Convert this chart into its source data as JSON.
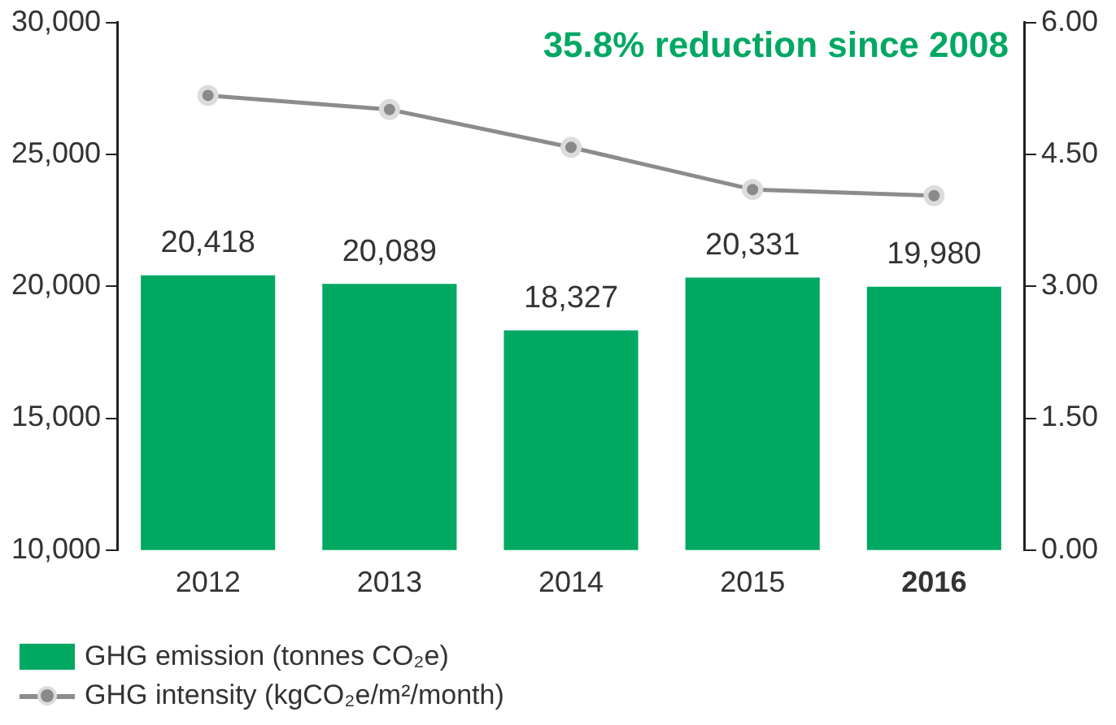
{
  "chart_data": {
    "type": "bar",
    "categories": [
      "2012",
      "2013",
      "2014",
      "2015",
      "2016"
    ],
    "series": [
      {
        "name": "GHG emission (tonnes CO₂e)",
        "color": "#00a862",
        "values": [
          20418,
          20089,
          18327,
          20331,
          19980
        ],
        "value_labels": [
          "20,418",
          "20,089",
          "18,327",
          "20,331",
          "19,980"
        ]
      },
      {
        "name": "GHG intensity (kgCO₂e/m²/month)",
        "type": "line",
        "axis": "y2",
        "color": "#8c8c8c",
        "values": [
          5.17,
          5.01,
          4.58,
          4.1,
          4.03
        ]
      }
    ],
    "ylim": [
      10000,
      30000
    ],
    "yticks": [
      {
        "value": 10000,
        "label": "10,000"
      },
      {
        "value": 15000,
        "label": "15,000"
      },
      {
        "value": 20000,
        "label": "20,000"
      },
      {
        "value": 25000,
        "label": "25,000"
      },
      {
        "value": 30000,
        "label": "30,000"
      }
    ],
    "y2lim": [
      0,
      6
    ],
    "y2ticks": [
      {
        "value": 0,
        "label": "0.00"
      },
      {
        "value": 1.5,
        "label": "1.50"
      },
      {
        "value": 3,
        "label": "3.00"
      },
      {
        "value": 4.5,
        "label": "4.50"
      },
      {
        "value": 6,
        "label": "6.00"
      }
    ],
    "annotations": [
      "35.8% reduction since 2008"
    ],
    "marker": "circle",
    "grid": false,
    "legend": "bottom left"
  }
}
